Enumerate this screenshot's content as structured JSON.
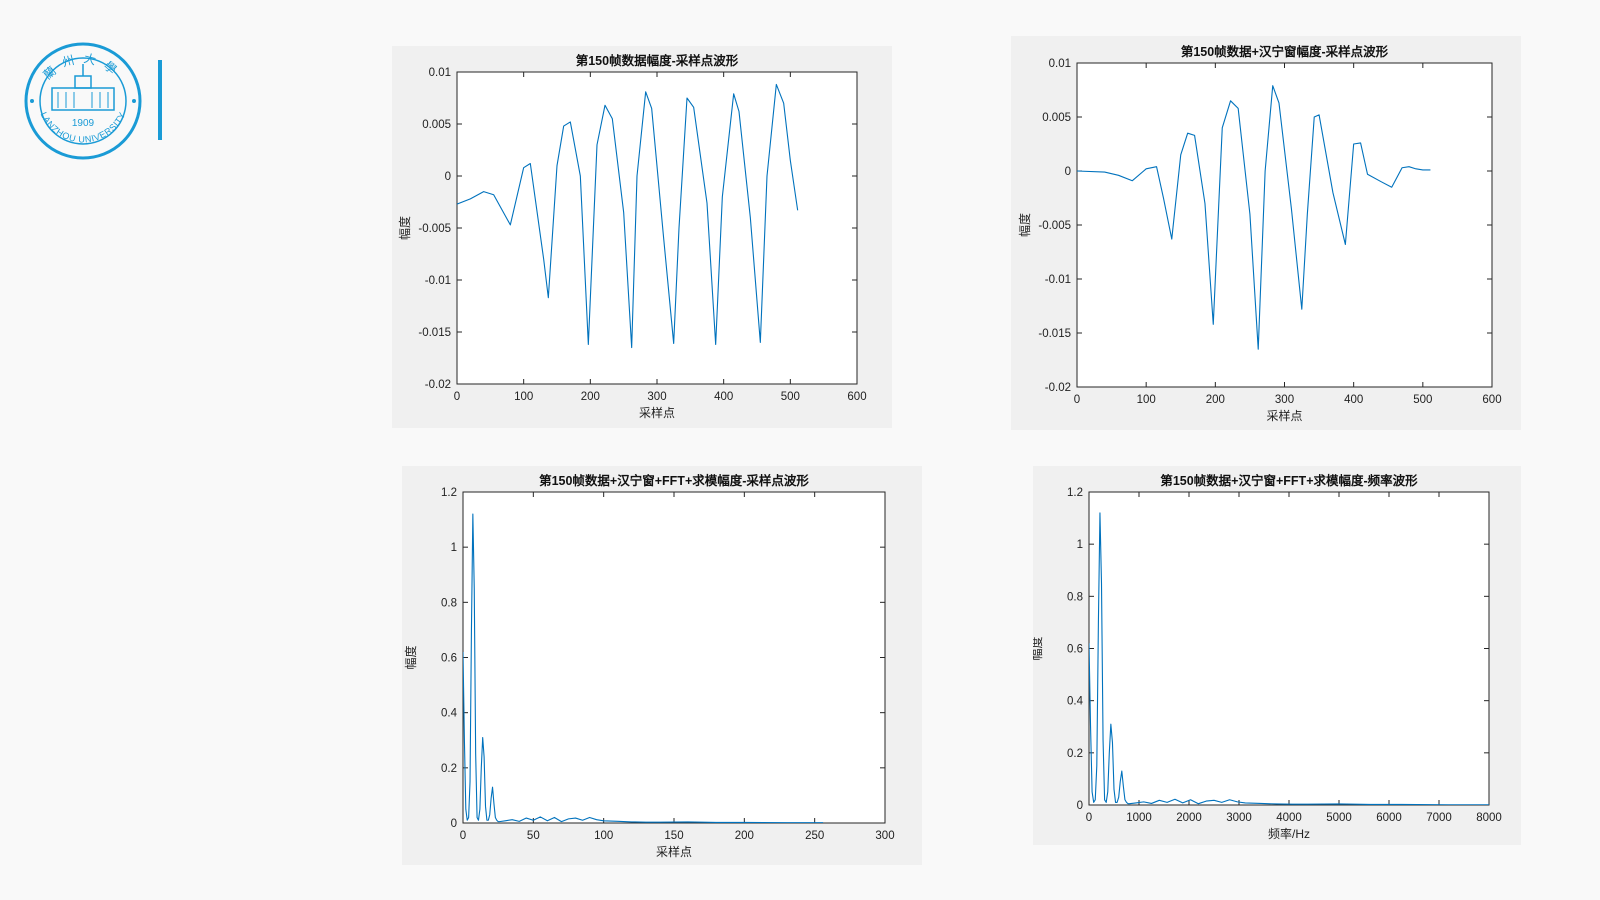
{
  "logo": {
    "year": "1909",
    "name_en": "LANZHOU UNIVERSITY",
    "name_cn": "蘭州大學",
    "accent_color": "#1a9bd6"
  },
  "line_color": "#0072bd",
  "chart_data": [
    {
      "type": "line",
      "title": "第150帧数据幅度-采样点波形",
      "xlabel": "采样点",
      "ylabel": "幅度",
      "xlim": [
        0,
        600
      ],
      "ylim": [
        -0.02,
        0.01
      ],
      "xticks": [
        0,
        100,
        200,
        300,
        400,
        500,
        600
      ],
      "xtick_labels": [
        "0",
        "100",
        "200",
        "300",
        "400",
        "500",
        "600"
      ],
      "yticks": [
        -0.02,
        -0.015,
        -0.01,
        -0.005,
        0,
        0.005,
        0.01
      ],
      "ytick_labels": [
        "-0.02",
        "-0.015",
        "-0.01",
        "-0.005",
        "0",
        "0.005",
        "0.01"
      ],
      "grid": false,
      "series": [
        {
          "x": [
            0,
            20,
            40,
            55,
            80,
            100,
            110,
            130,
            137,
            150,
            160,
            170,
            185,
            197,
            210,
            222,
            233,
            250,
            262,
            270,
            283,
            292,
            310,
            325,
            333,
            345,
            355,
            375,
            388,
            398,
            415,
            423,
            440,
            455,
            465,
            479,
            490,
            500,
            511
          ],
          "y": [
            -0.0027,
            -0.0022,
            -0.0015,
            -0.0018,
            -0.0047,
            0.0008,
            0.0012,
            -0.008,
            -0.0117,
            0.001,
            0.0048,
            0.0052,
            0.0,
            -0.0162,
            0.003,
            0.0068,
            0.0055,
            -0.0035,
            -0.0165,
            0.0,
            0.0081,
            0.0065,
            -0.006,
            -0.0161,
            -0.005,
            0.0075,
            0.0066,
            -0.0026,
            -0.0162,
            -0.002,
            0.0079,
            0.0062,
            -0.004,
            -0.016,
            0.0,
            0.0088,
            0.007,
            0.0015,
            -0.0033
          ]
        }
      ]
    },
    {
      "type": "line",
      "title": "第150帧数据+汉宁窗幅度-采样点波形",
      "xlabel": "采样点",
      "ylabel": "幅度",
      "xlim": [
        0,
        600
      ],
      "ylim": [
        -0.02,
        0.01
      ],
      "xticks": [
        0,
        100,
        200,
        300,
        400,
        500,
        600
      ],
      "xtick_labels": [
        "0",
        "100",
        "200",
        "300",
        "400",
        "500",
        "600"
      ],
      "yticks": [
        -0.02,
        -0.015,
        -0.01,
        -0.005,
        0,
        0.005,
        0.01
      ],
      "ytick_labels": [
        "-0.02",
        "-0.015",
        "-0.01",
        "-0.005",
        "0",
        "0.005",
        "0.01"
      ],
      "grid": false,
      "series": [
        {
          "x": [
            0,
            40,
            60,
            80,
            100,
            115,
            125,
            137,
            150,
            160,
            170,
            185,
            197,
            210,
            222,
            233,
            250,
            262,
            272,
            283,
            292,
            310,
            325,
            333,
            343,
            350,
            370,
            388,
            400,
            410,
            420,
            440,
            455,
            470,
            480,
            490,
            500,
            511
          ],
          "y": [
            0.0,
            -0.0001,
            -0.0004,
            -0.0009,
            0.0002,
            0.0004,
            -0.0025,
            -0.0063,
            0.0015,
            0.0035,
            0.0033,
            -0.003,
            -0.0142,
            0.004,
            0.0065,
            0.0058,
            -0.004,
            -0.0165,
            0.0,
            0.0079,
            0.0063,
            -0.0035,
            -0.0128,
            -0.004,
            0.005,
            0.0052,
            -0.002,
            -0.0068,
            0.0025,
            0.0026,
            -0.0003,
            -0.001,
            -0.0015,
            0.0003,
            0.0004,
            0.0002,
            0.0001,
            0.0001
          ]
        }
      ]
    },
    {
      "type": "line",
      "title": "第150帧数据+汉宁窗+FFT+求模幅度-采样点波形",
      "xlabel": "采样点",
      "ylabel": "幅度",
      "xlim": [
        0,
        300
      ],
      "ylim": [
        0,
        1.2
      ],
      "xticks": [
        0,
        50,
        100,
        150,
        200,
        250,
        300
      ],
      "xtick_labels": [
        "0",
        "50",
        "100",
        "150",
        "200",
        "250",
        "300"
      ],
      "yticks": [
        0,
        0.2,
        0.4,
        0.6,
        0.8,
        1,
        1.2
      ],
      "ytick_labels": [
        "0",
        "0.2",
        "0.4",
        "0.6",
        "0.8",
        "1",
        "1.2"
      ],
      "grid": false,
      "series": [
        {
          "x": [
            0,
            1,
            2,
            3,
            4,
            5,
            6,
            7,
            8,
            9,
            10,
            11,
            12,
            13,
            14,
            15,
            16,
            17,
            18,
            19,
            20,
            21,
            22,
            23,
            24,
            25,
            26,
            30,
            35,
            40,
            45,
            50,
            55,
            60,
            65,
            70,
            75,
            80,
            85,
            90,
            95,
            100,
            110,
            120,
            130,
            140,
            160,
            170,
            180,
            200,
            230,
            256
          ],
          "y": [
            0.62,
            0.3,
            0.05,
            0.01,
            0.02,
            0.15,
            0.7,
            1.12,
            0.85,
            0.25,
            0.02,
            0.01,
            0.05,
            0.2,
            0.31,
            0.24,
            0.06,
            0.01,
            0.01,
            0.03,
            0.09,
            0.13,
            0.07,
            0.02,
            0.01,
            0.005,
            0.005,
            0.008,
            0.012,
            0.006,
            0.018,
            0.01,
            0.022,
            0.008,
            0.02,
            0.005,
            0.015,
            0.018,
            0.01,
            0.02,
            0.012,
            0.008,
            0.006,
            0.004,
            0.003,
            0.003,
            0.004,
            0.003,
            0.002,
            0.002,
            0.001,
            0.001
          ]
        }
      ]
    },
    {
      "type": "line",
      "title": "第150帧数据+汉宁窗+FFT+求模幅度-频率波形",
      "xlabel": "频率/Hz",
      "ylabel": "幅度",
      "xlim": [
        0,
        8000
      ],
      "ylim": [
        0,
        1.2
      ],
      "xticks": [
        0,
        1000,
        2000,
        3000,
        4000,
        5000,
        6000,
        7000,
        8000
      ],
      "xtick_labels": [
        "0",
        "1000",
        "2000",
        "3000",
        "4000",
        "5000",
        "6000",
        "7000",
        "8000"
      ],
      "yticks": [
        0,
        0.2,
        0.4,
        0.6,
        0.8,
        1,
        1.2
      ],
      "ytick_labels": [
        "0",
        "0.2",
        "0.4",
        "0.6",
        "0.8",
        "1",
        "1.2"
      ],
      "grid": false,
      "series": [
        {
          "x": [
            0,
            31,
            62,
            94,
            125,
            156,
            188,
            219,
            250,
            281,
            312,
            344,
            375,
            406,
            437,
            469,
            500,
            531,
            562,
            594,
            625,
            656,
            688,
            719,
            750,
            781,
            812,
            938,
            1094,
            1250,
            1406,
            1562,
            1719,
            1875,
            2031,
            2188,
            2344,
            2500,
            2656,
            2812,
            2969,
            3125,
            3438,
            3750,
            4062,
            4375,
            5000,
            5312,
            5625,
            6250,
            7188,
            8000
          ],
          "y": [
            0.62,
            0.3,
            0.05,
            0.01,
            0.02,
            0.15,
            0.7,
            1.12,
            0.85,
            0.25,
            0.02,
            0.01,
            0.05,
            0.2,
            0.31,
            0.24,
            0.06,
            0.01,
            0.01,
            0.03,
            0.09,
            0.13,
            0.07,
            0.02,
            0.01,
            0.005,
            0.005,
            0.008,
            0.012,
            0.006,
            0.018,
            0.01,
            0.022,
            0.008,
            0.02,
            0.005,
            0.015,
            0.018,
            0.01,
            0.02,
            0.012,
            0.008,
            0.006,
            0.004,
            0.003,
            0.003,
            0.004,
            0.003,
            0.002,
            0.002,
            0.001,
            0.001
          ]
        }
      ]
    }
  ]
}
